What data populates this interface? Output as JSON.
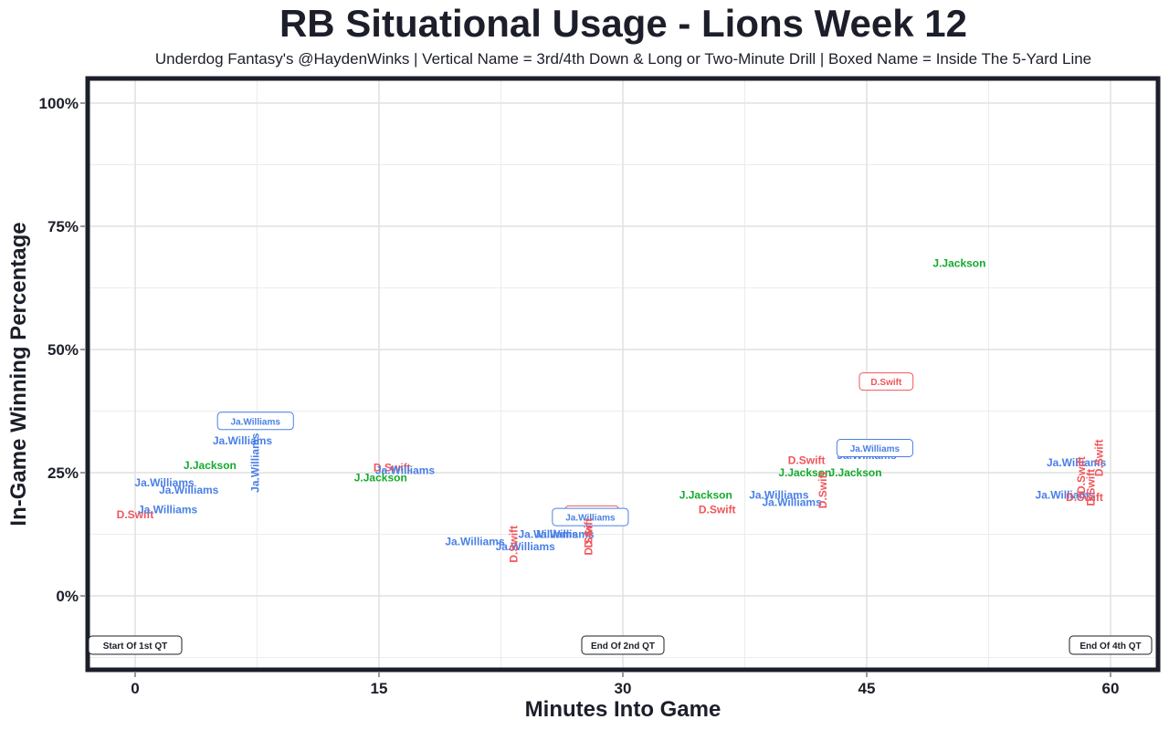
{
  "chart_data": {
    "type": "scatter",
    "title": "RB Situational Usage - Lions Week 12",
    "subtitle": "Underdog Fantasy's @HaydenWinks | Vertical Name = 3rd/4th Down & Long or Two-Minute Drill | Boxed Name = Inside The 5-Yard Line",
    "xlabel": "Minutes Into Game",
    "ylabel": "In-Game Winning Percentage",
    "xlim": [
      -3,
      63
    ],
    "ylim": [
      -15,
      105
    ],
    "x_ticks": [
      0,
      15,
      30,
      45,
      60
    ],
    "x_tick_labels": [
      "0",
      "15",
      "30",
      "45",
      "60"
    ],
    "y_ticks": [
      0,
      25,
      50,
      75,
      100
    ],
    "y_tick_labels": [
      "0%",
      "25%",
      "50%",
      "75%",
      "100%"
    ],
    "grid": true,
    "colors": {
      "D.Swift": "#f0555a",
      "Ja.Williams": "#4a80e6",
      "J.Jackson": "#14aa2d"
    },
    "annotations": [
      {
        "text": "Start Of 1st QT",
        "x": 0,
        "y": -10
      },
      {
        "text": "End Of 2nd QT",
        "x": 30,
        "y": -10
      },
      {
        "text": "End Of 4th QT",
        "x": 60,
        "y": -10
      }
    ],
    "points": [
      {
        "player": "D.Swift",
        "x": 0,
        "y": 16.5,
        "style": "normal"
      },
      {
        "player": "Ja.Williams",
        "x": 2,
        "y": 17.5,
        "style": "normal"
      },
      {
        "player": "Ja.Williams",
        "x": 1.8,
        "y": 23,
        "style": "normal"
      },
      {
        "player": "Ja.Williams",
        "x": 3.3,
        "y": 21.5,
        "style": "normal"
      },
      {
        "player": "J.Jackson",
        "x": 4.6,
        "y": 26.5,
        "style": "normal"
      },
      {
        "player": "Ja.Williams",
        "x": 6.6,
        "y": 31.5,
        "style": "normal"
      },
      {
        "player": "Ja.Williams",
        "x": 7.4,
        "y": 35.5,
        "style": "boxed"
      },
      {
        "player": "Ja.Williams",
        "x": 7.4,
        "y": 27,
        "style": "vertical"
      },
      {
        "player": "D.Swift",
        "x": 15.8,
        "y": 26,
        "style": "normal"
      },
      {
        "player": "Ja.Williams",
        "x": 16.6,
        "y": 25.5,
        "style": "normal"
      },
      {
        "player": "J.Jackson",
        "x": 15.1,
        "y": 24,
        "style": "normal"
      },
      {
        "player": "Ja.Williams",
        "x": 20.9,
        "y": 11,
        "style": "normal"
      },
      {
        "player": "Ja.Williams",
        "x": 24,
        "y": 10,
        "style": "normal"
      },
      {
        "player": "Ja.Williams",
        "x": 25.4,
        "y": 12.5,
        "style": "normal"
      },
      {
        "player": "Ja.Williams",
        "x": 26.4,
        "y": 12.5,
        "style": "normal"
      },
      {
        "player": "D.Swift",
        "x": 23.3,
        "y": 10.5,
        "style": "vertical"
      },
      {
        "player": "D.Swift",
        "x": 27.9,
        "y": 13.5,
        "style": "vertical"
      },
      {
        "player": "D.Swift",
        "x": 28.1,
        "y": 16.5,
        "style": "boxed"
      },
      {
        "player": "Ja.Williams",
        "x": 28,
        "y": 16,
        "style": "boxed"
      },
      {
        "player": "D.Swift",
        "x": 27.9,
        "y": 12,
        "style": "vertical"
      },
      {
        "player": "J.Jackson",
        "x": 35.1,
        "y": 20.5,
        "style": "normal"
      },
      {
        "player": "D.Swift",
        "x": 35.8,
        "y": 17.5,
        "style": "normal"
      },
      {
        "player": "Ja.Williams",
        "x": 39.6,
        "y": 20.5,
        "style": "normal"
      },
      {
        "player": "Ja.Williams",
        "x": 40.4,
        "y": 19,
        "style": "normal"
      },
      {
        "player": "D.Swift",
        "x": 41.3,
        "y": 27.5,
        "style": "normal"
      },
      {
        "player": "J.Jackson",
        "x": 41.2,
        "y": 25,
        "style": "normal"
      },
      {
        "player": "D.Swift",
        "x": 42.3,
        "y": 21.5,
        "style": "vertical"
      },
      {
        "player": "Ja.Williams",
        "x": 45,
        "y": 28.5,
        "style": "normal"
      },
      {
        "player": "J.Jackson",
        "x": 44.3,
        "y": 25,
        "style": "normal"
      },
      {
        "player": "Ja.Williams",
        "x": 45.5,
        "y": 30,
        "style": "boxed"
      },
      {
        "player": "D.Swift",
        "x": 46.2,
        "y": 43.5,
        "style": "boxed"
      },
      {
        "player": "J.Jackson",
        "x": 50.7,
        "y": 67.5,
        "style": "normal"
      },
      {
        "player": "Ja.Williams",
        "x": 57.9,
        "y": 27,
        "style": "normal"
      },
      {
        "player": "Ja.Williams",
        "x": 57.2,
        "y": 20.5,
        "style": "normal"
      },
      {
        "player": "D.Swift",
        "x": 58.4,
        "y": 20,
        "style": "normal"
      },
      {
        "player": "D.Swift",
        "x": 58.2,
        "y": 24.5,
        "style": "vertical"
      },
      {
        "player": "D.Swift",
        "x": 58.8,
        "y": 22,
        "style": "vertical"
      },
      {
        "player": "D.Swift",
        "x": 59.3,
        "y": 28,
        "style": "vertical"
      }
    ]
  }
}
